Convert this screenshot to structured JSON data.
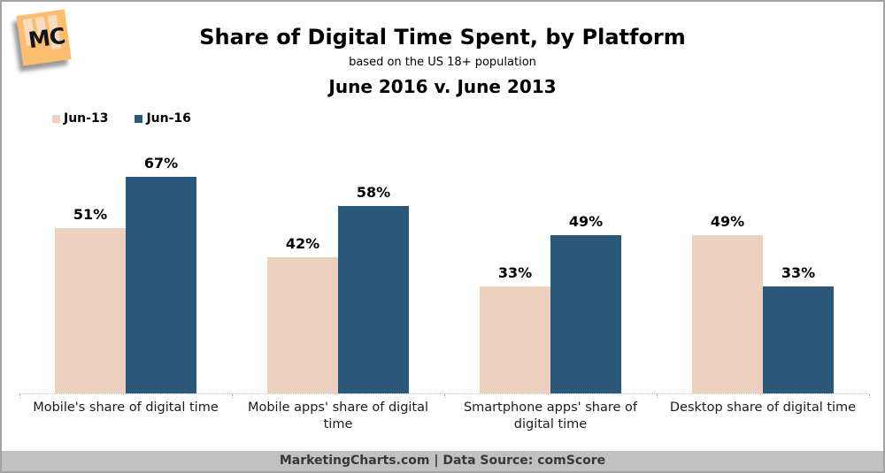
{
  "page": {
    "logo_text": "MC",
    "footer": "MarketingCharts.com | Data Source: comScore"
  },
  "chart_data": {
    "type": "bar",
    "title": "Share of Digital Time Spent, by Platform",
    "subtitle": "based on the US 18+ population",
    "comparison": "June 2016 v. June 2013",
    "categories": [
      "Mobile's share of digital time",
      "Mobile apps' share of digital time",
      "Smartphone apps' share of digital time",
      "Desktop share of digital time"
    ],
    "series": [
      {
        "name": "Jun-13",
        "color": "#EBD1BE",
        "values": [
          51,
          42,
          33,
          49
        ]
      },
      {
        "name": "Jun-16",
        "color": "#2B5878",
        "values": [
          67,
          58,
          49,
          33
        ]
      }
    ],
    "unit": "%",
    "ylim": [
      0,
      80
    ],
    "grid": false,
    "value_labels": true,
    "legend_position": "top-left",
    "axis_line": "dotted"
  },
  "colors": {
    "jun13_bar": "#EBD1BE",
    "jun16_bar": "#2B5878",
    "footer_bg": "#C1C1C1",
    "logo_orange": "#F9BE70",
    "page_border": "#A3A3A3"
  }
}
